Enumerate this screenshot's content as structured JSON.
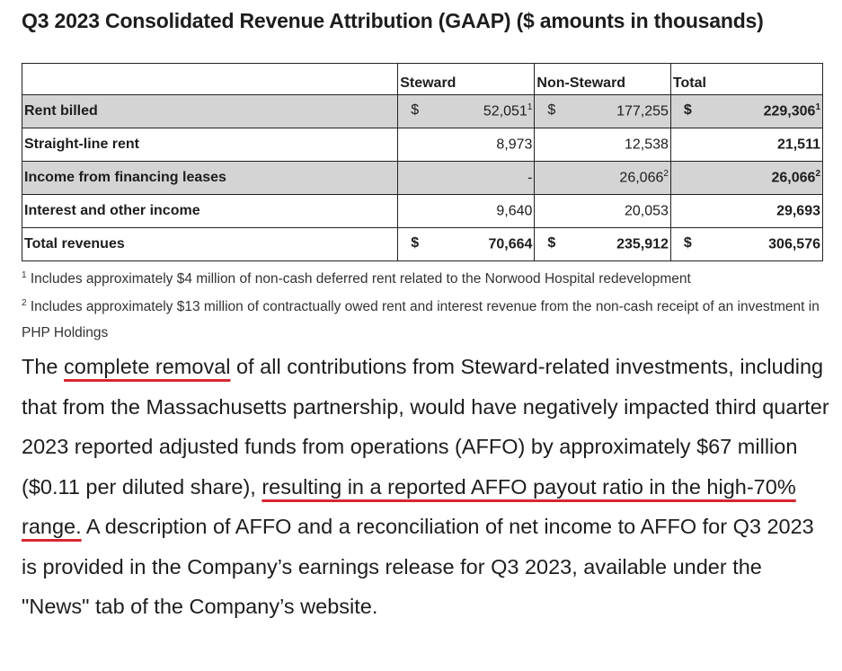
{
  "title": "Q3 2023 Consolidated Revenue Attribution (GAAP) ($ amounts in thousands)",
  "table": {
    "headers": [
      "",
      "Steward",
      "Non-Steward",
      "Total"
    ],
    "rows": [
      {
        "label": "Rent billed",
        "steward_cur": "$",
        "steward": "52,051",
        "steward_sup": "1",
        "non_cur": "$",
        "non": "177,255",
        "non_sup": "",
        "total_cur": "$",
        "total": "229,306",
        "total_sup": "1",
        "shaded": true
      },
      {
        "label": "Straight-line rent",
        "steward_cur": "",
        "steward": "8,973",
        "steward_sup": "",
        "non_cur": "",
        "non": "12,538",
        "non_sup": "",
        "total_cur": "",
        "total": "21,511",
        "total_sup": "",
        "shaded": false
      },
      {
        "label": "Income from financing leases",
        "steward_cur": "",
        "steward": "-",
        "steward_sup": "",
        "non_cur": "",
        "non": "26,066",
        "non_sup": "2",
        "total_cur": "",
        "total": "26,066",
        "total_sup": "2",
        "shaded": true
      },
      {
        "label": "Interest and other income",
        "steward_cur": "",
        "steward": "9,640",
        "steward_sup": "",
        "non_cur": "",
        "non": "20,053",
        "non_sup": "",
        "total_cur": "",
        "total": "29,693",
        "total_sup": "",
        "shaded": false
      },
      {
        "label": "Total revenues",
        "steward_cur": "$",
        "steward": "70,664",
        "steward_sup": "",
        "non_cur": "$",
        "non": "235,912",
        "non_sup": "",
        "total_cur": "$",
        "total": "306,576",
        "total_sup": "",
        "shaded": false,
        "bold": true
      }
    ]
  },
  "footnotes": [
    {
      "mark": "1",
      "text": "Includes approximately $4 million of non-cash deferred rent related to the Norwood Hospital redevelopment"
    },
    {
      "mark": "2",
      "text": "Includes approximately $13 million of contractually owed rent and interest revenue from the non-cash receipt of an investment in PHP Holdings"
    }
  ],
  "paragraph": {
    "p1": "The ",
    "u1": "complete removal",
    "p2": " of all contributions from Steward-related investments, including that from the Massachusetts partnership, would have negatively impacted third quarter 2023 reported adjusted funds from operations (AFFO) by approximately $67 million ($0.11 per diluted share), ",
    "u2": "resulting in a reported AFFO payout ratio in the high-70% range.",
    "p3": " A description of AFFO and a reconciliation of net income to AFFO for Q3 2023 is provided in the Company’s earnings release for Q3 2023, available under the \"News\" tab of the Company’s website."
  },
  "colors": {
    "highlight": "#d8262f",
    "shade": "#d4d4d4"
  }
}
